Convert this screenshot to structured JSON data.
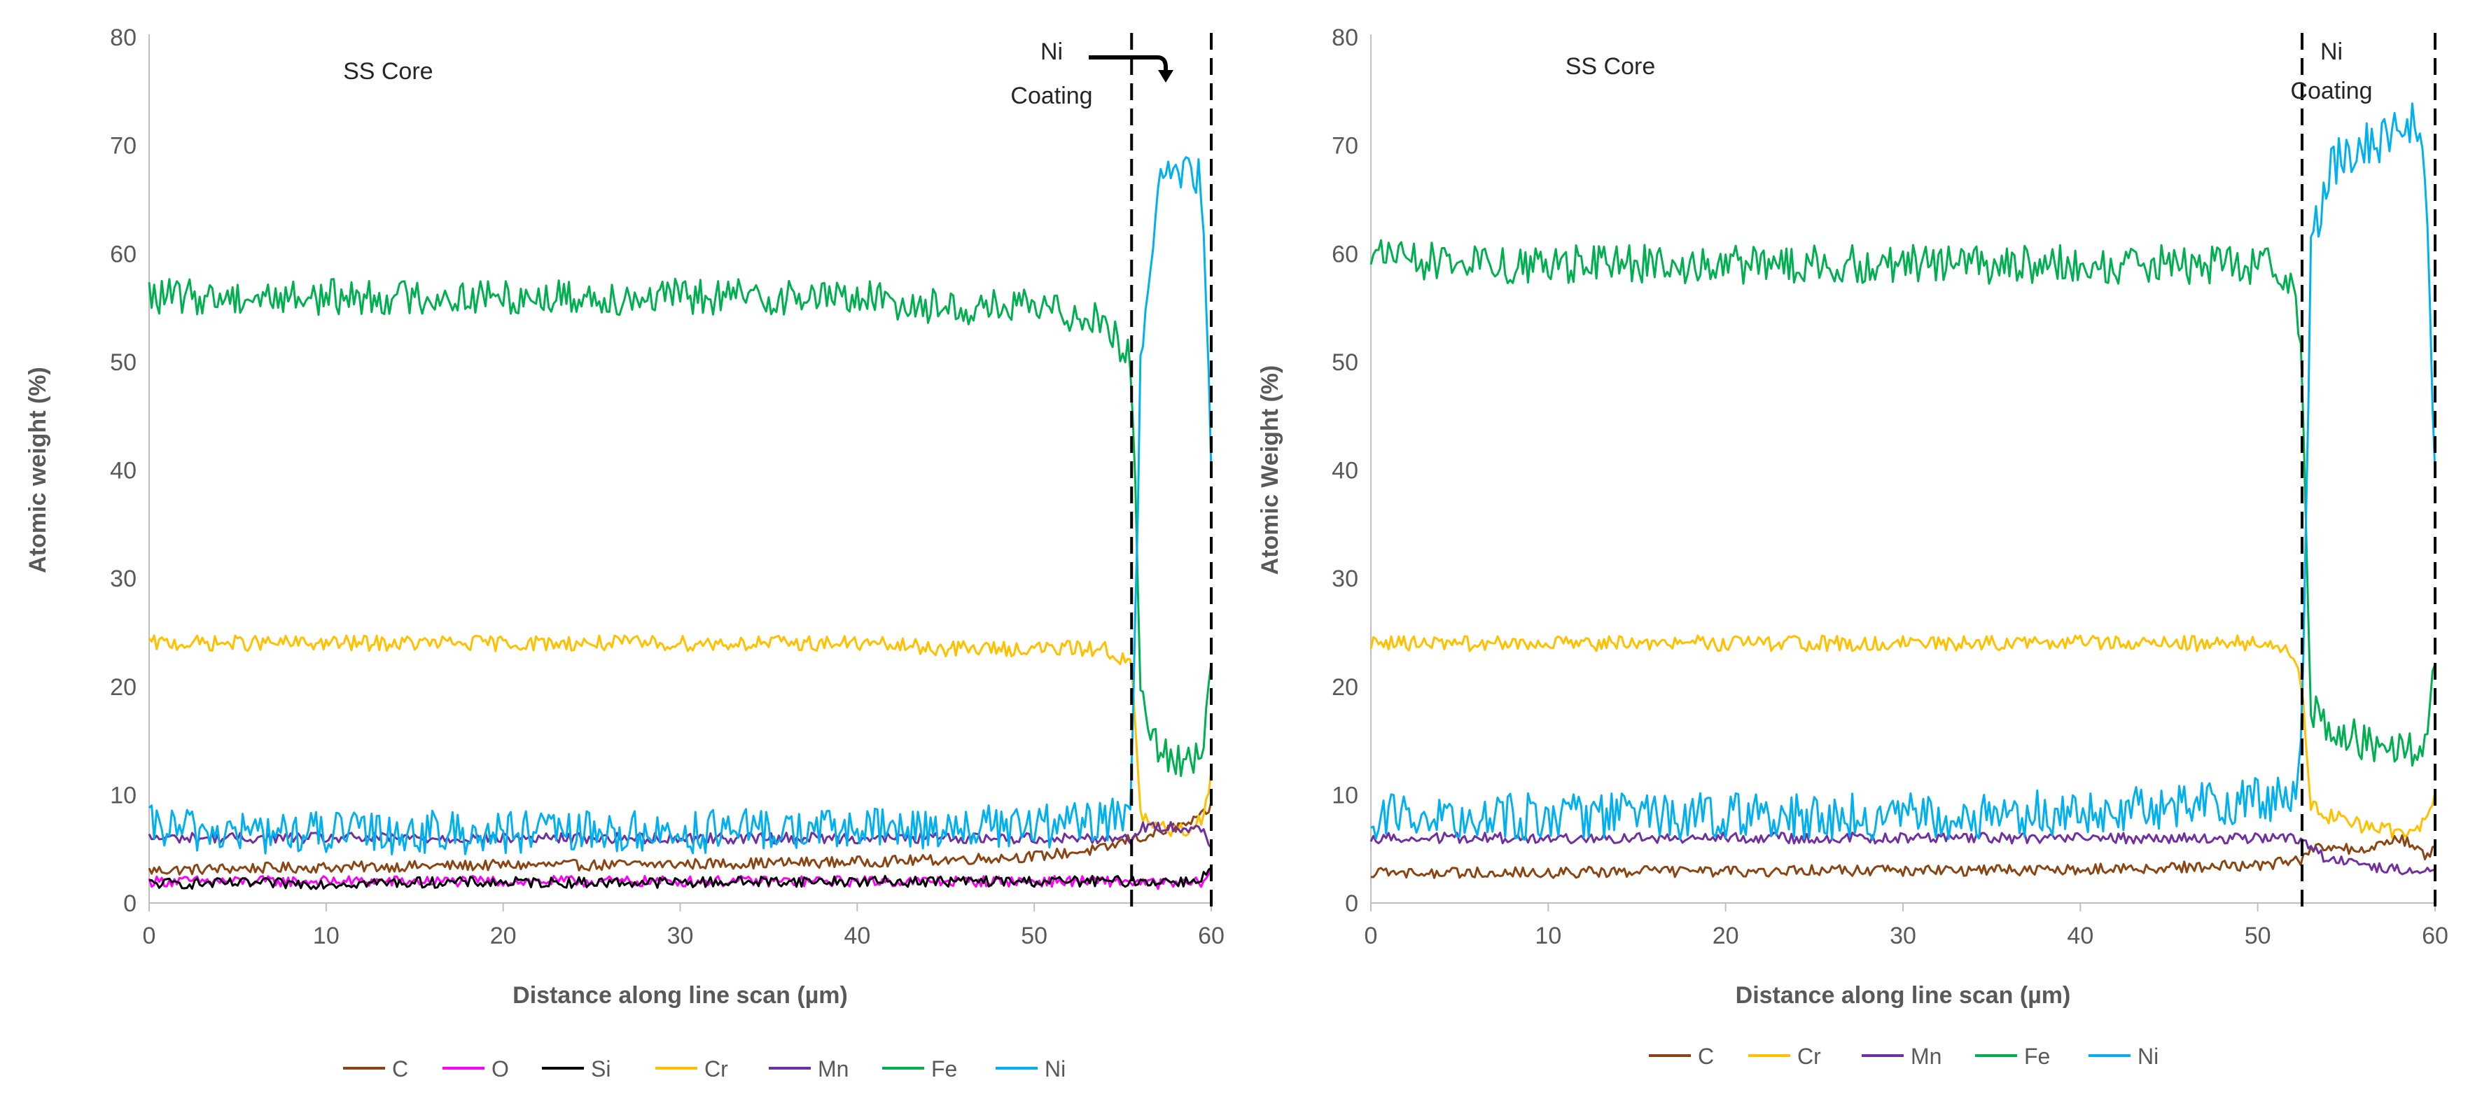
{
  "chart_data": [
    {
      "type": "line",
      "xlabel": "Distance along line scan (µm)",
      "ylabel": "Atomic weight (%)",
      "xlim": [
        0,
        60
      ],
      "ylim": [
        0,
        80
      ],
      "xticks": [
        "0",
        "10",
        "20",
        "30",
        "40",
        "50",
        "60"
      ],
      "yticks": [
        "0",
        "10",
        "20",
        "30",
        "40",
        "50",
        "60",
        "70",
        "80"
      ],
      "boundaries": [
        55.5,
        60
      ],
      "annotations": {
        "core": "SS Core",
        "coating_line1": "Ni",
        "coating_line2": "Coating"
      },
      "legend_position": "bottom",
      "x": [
        0,
        5,
        10,
        15,
        20,
        25,
        30,
        35,
        40,
        45,
        50,
        54,
        55.5,
        56,
        57,
        58,
        59,
        59.5,
        60
      ],
      "series": [
        {
          "name": "C",
          "color": "#8B4513",
          "values": [
            3,
            3.2,
            3.3,
            3.4,
            3.5,
            3.5,
            3.6,
            3.7,
            3.8,
            4,
            4.3,
            5,
            6,
            6,
            6.5,
            7,
            7.5,
            8,
            9
          ]
        },
        {
          "name": "O",
          "color": "#FF00FF",
          "values": [
            2,
            2,
            2,
            2,
            2,
            2,
            2,
            2,
            2,
            2,
            2,
            2,
            2,
            1.8,
            1.8,
            1.8,
            1.8,
            2,
            3
          ]
        },
        {
          "name": "Si",
          "color": "#000000",
          "values": [
            1.8,
            1.8,
            1.8,
            1.9,
            1.9,
            1.9,
            1.9,
            2,
            2,
            2,
            2,
            2,
            2,
            2,
            2,
            2,
            2,
            2.5,
            3
          ]
        },
        {
          "name": "Cr",
          "color": "#FFC000",
          "values": [
            24,
            24,
            24,
            24,
            24,
            24,
            24,
            24,
            24,
            23.5,
            23.5,
            23.5,
            22,
            8,
            7,
            6.5,
            7,
            8,
            12
          ]
        },
        {
          "name": "Mn",
          "color": "#7030A0",
          "values": [
            6,
            6,
            6,
            6,
            6,
            6,
            6,
            6,
            6,
            6,
            6,
            6,
            6,
            7,
            7,
            7,
            7,
            7,
            5
          ]
        },
        {
          "name": "Fe",
          "color": "#00B050",
          "values": [
            56,
            56,
            56,
            56,
            56,
            56,
            56,
            56,
            56,
            55,
            55,
            54,
            50,
            20,
            14,
            13,
            13,
            15,
            22
          ]
        },
        {
          "name": "Ni",
          "color": "#00B0F0",
          "values": [
            7,
            6.5,
            6.5,
            6.5,
            6.5,
            6.5,
            6.5,
            6.8,
            6.8,
            7,
            7,
            7.5,
            9,
            50,
            66,
            67,
            68,
            66,
            40
          ]
        }
      ]
    },
    {
      "type": "line",
      "xlabel": "Distance along line scan (µm)",
      "ylabel": "Atomic Weight (%)",
      "xlim": [
        0,
        60
      ],
      "ylim": [
        0,
        80
      ],
      "xticks": [
        "0",
        "10",
        "20",
        "30",
        "40",
        "50",
        "60"
      ],
      "yticks": [
        "0",
        "10",
        "20",
        "30",
        "40",
        "50",
        "60",
        "70",
        "80"
      ],
      "boundaries": [
        52.5,
        60
      ],
      "annotations": {
        "core": "SS Core",
        "coating_line1": "Ni",
        "coating_line2": "Coating"
      },
      "legend_position": "bottom",
      "x": [
        0,
        5,
        10,
        15,
        20,
        25,
        30,
        35,
        40,
        45,
        50,
        52,
        52.5,
        53,
        54,
        56,
        58,
        59,
        59.5,
        60
      ],
      "series": [
        {
          "name": "C",
          "color": "#8B4513",
          "values": [
            2.8,
            2.8,
            2.8,
            2.9,
            2.9,
            3,
            3,
            3,
            3.1,
            3.3,
            3.5,
            3.8,
            4,
            5,
            5,
            5,
            6,
            5,
            4,
            5
          ]
        },
        {
          "name": "Cr",
          "color": "#FFC000",
          "values": [
            24,
            24,
            24,
            24,
            24,
            24,
            24,
            24,
            24,
            24,
            24,
            23,
            20,
            9,
            8,
            7,
            6.5,
            7,
            8,
            10
          ]
        },
        {
          "name": "Mn",
          "color": "#7030A0",
          "values": [
            6,
            6,
            6,
            6,
            6,
            6,
            6,
            6,
            6,
            6,
            6,
            6,
            6,
            5,
            4,
            3.5,
            3,
            3,
            3,
            3
          ]
        },
        {
          "name": "Fe",
          "color": "#00B050",
          "values": [
            60,
            59,
            59,
            59,
            59,
            59,
            59,
            59,
            59,
            59,
            59,
            58,
            50,
            18,
            16,
            15,
            14,
            14,
            16,
            22
          ]
        },
        {
          "name": "Ni",
          "color": "#00B0F0",
          "values": [
            8,
            8,
            8,
            8,
            8,
            8,
            8,
            8,
            8.5,
            9,
            9.5,
            10,
            14,
            60,
            68,
            70,
            71,
            72,
            66,
            40
          ]
        }
      ]
    }
  ]
}
